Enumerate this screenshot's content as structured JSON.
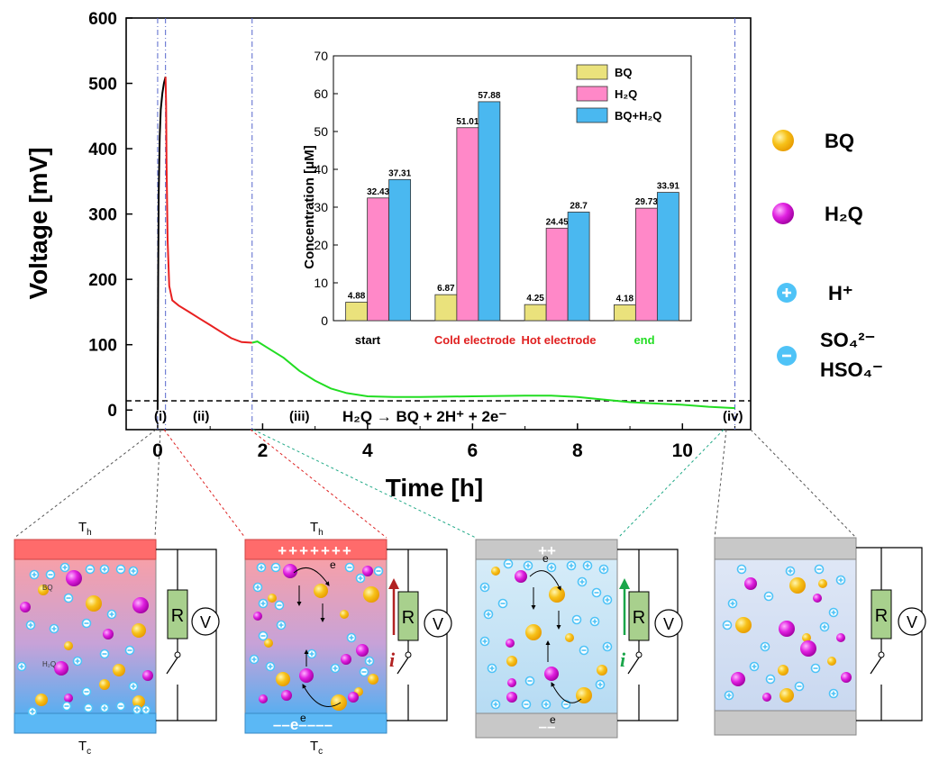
{
  "main_chart": {
    "y_title": "Voltage [mV]",
    "x_title": "Time [h]",
    "y_ticks": [
      "0",
      "100",
      "200",
      "300",
      "400",
      "500",
      "600"
    ],
    "x_ticks": [
      "0",
      "2",
      "4",
      "6",
      "8",
      "10"
    ],
    "phases": [
      "(i)",
      "(ii)",
      "(iii)",
      "(iv)"
    ],
    "reaction": "H₂Q → BQ + 2H⁺ + 2e⁻"
  },
  "chart_data": [
    {
      "type": "line",
      "xlabel": "Time [h]",
      "ylabel": "Voltage [mV]",
      "xlim": [
        -0.6,
        11.3
      ],
      "ylim": [
        -30,
        600
      ],
      "grid": false,
      "series": [
        {
          "color": "#000000",
          "x": [
            0.0,
            0.01,
            0.02,
            0.04,
            0.06,
            0.09,
            0.12,
            0.15
          ],
          "y": [
            0,
            200,
            330,
            420,
            460,
            485,
            500,
            510
          ]
        },
        {
          "color": "#e82020",
          "x": [
            0.15,
            0.16,
            0.17,
            0.19,
            0.22,
            0.28,
            0.4,
            0.6,
            0.8,
            1.0,
            1.2,
            1.4,
            1.6,
            1.8
          ],
          "y": [
            510,
            470,
            380,
            260,
            190,
            168,
            160,
            150,
            140,
            130,
            120,
            110,
            104,
            103
          ]
        },
        {
          "color": "#22dd22",
          "x": [
            1.8,
            1.9,
            2.1,
            2.4,
            2.7,
            3.0,
            3.3,
            3.6,
            4.0,
            4.5,
            5.0,
            6.0,
            7.0,
            7.5,
            8.0,
            8.5,
            9.0,
            9.5,
            10.0,
            10.5,
            11.0
          ],
          "y": [
            103,
            105,
            95,
            80,
            60,
            45,
            33,
            26,
            21,
            20,
            20,
            21,
            22,
            22,
            20,
            16,
            12,
            10,
            8,
            5,
            3
          ]
        }
      ],
      "phase_lines_x": [
        0.0,
        0.15,
        1.8,
        11.0
      ]
    },
    {
      "type": "bar",
      "ylabel": "Concentration  [μM]",
      "ylim": [
        0,
        70
      ],
      "y_ticks": [
        0,
        10,
        20,
        30,
        40,
        50,
        60,
        70
      ],
      "categories": [
        "start",
        "Cold  electrode",
        "Hot electrode",
        "end"
      ],
      "category_colors": [
        "#000000",
        "#e02020",
        "#e02020",
        "#22dd22"
      ],
      "legend_position": "top-right",
      "series": [
        {
          "name": "BQ",
          "color": "#eae27c",
          "values": [
            4.88,
            6.87,
            4.25,
            4.18
          ],
          "labels": [
            "4.88",
            "6.87",
            "4.25",
            "4.18"
          ]
        },
        {
          "name": "H₂Q",
          "color": "#ff88c8",
          "values": [
            32.43,
            51.01,
            24.45,
            29.73
          ],
          "labels": [
            "32.43",
            "51.01",
            "24.45",
            "29.73"
          ]
        },
        {
          "name": "BQ+H₂Q",
          "color": "#4ab8f0",
          "values": [
            37.31,
            57.88,
            28.7,
            33.91
          ],
          "labels": [
            "37.31",
            "57.88",
            "28.7",
            "33.91"
          ]
        }
      ]
    }
  ],
  "species_legend": {
    "bq": "BQ",
    "h2q": "H₂Q",
    "h": "H⁺",
    "so4": "SO₄²⁻",
    "hso4": "HSO₄⁻"
  },
  "cells": {
    "hot": "T",
    "hot_sub": "h",
    "cold": "T",
    "cold_sub": "c",
    "resistor": "R",
    "voltmeter": "V",
    "current": "i",
    "electron": "e",
    "plus_row_2": "+++++++",
    "minus_row_2": "––e––––",
    "plus_row_3": "++",
    "minus_row_3": "––",
    "bq_tag": "BQ",
    "h2q_tag": "H₂Q",
    "colors": {
      "hot": "#ff6b6b",
      "cold": "#5bb8f5",
      "gray": "#c8c8c8",
      "bq": "#f7b500",
      "h2q": "#d000d0",
      "ion": "#4fc3f7",
      "resistor": "#a8d08d"
    }
  }
}
